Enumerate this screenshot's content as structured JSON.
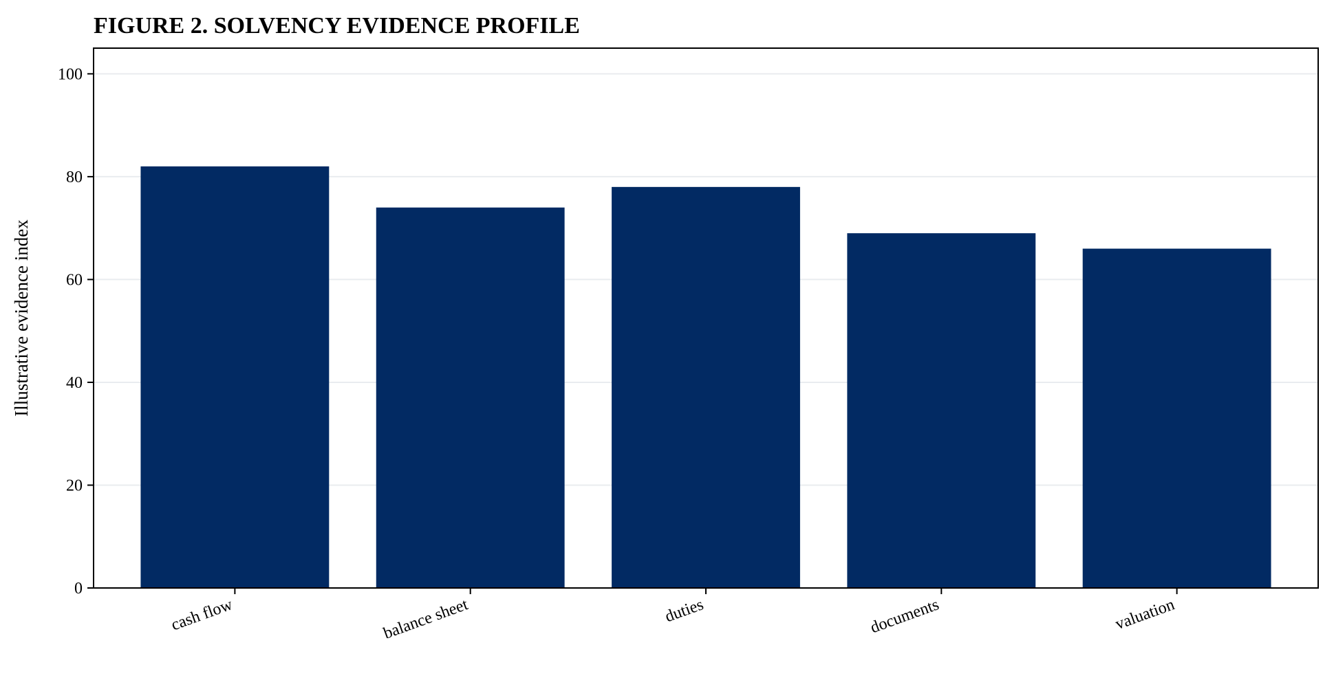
{
  "chart_data": {
    "type": "bar",
    "title": "FIGURE 2. SOLVENCY EVIDENCE PROFILE",
    "xlabel": "",
    "ylabel": "Illustrative evidence index",
    "categories": [
      "cash flow",
      "balance sheet",
      "duties",
      "documents",
      "valuation"
    ],
    "values": [
      82,
      74,
      78,
      69,
      66
    ],
    "ylim": [
      0,
      105
    ],
    "yticks": [
      0,
      20,
      40,
      60,
      80,
      100
    ],
    "grid": "horizontal",
    "legend": "none",
    "bar_color": "#022a63",
    "grid_color": "#e9ecef"
  }
}
